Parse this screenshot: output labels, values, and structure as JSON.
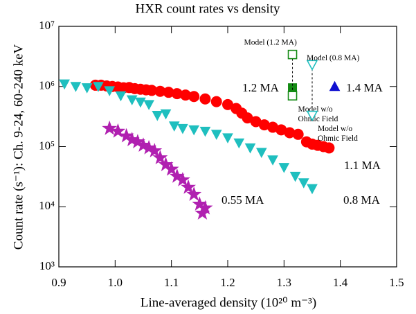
{
  "chart_data": {
    "type": "scatter",
    "title": "HXR count rates vs density",
    "xlabel": "Line-averaged density (10²⁰ m⁻³)",
    "ylabel": "Count rate (s⁻¹): Ch. 9-24, 60-240 keV",
    "xlim": [
      0.9,
      1.5
    ],
    "ylim": [
      1000,
      10000000
    ],
    "log_y": true,
    "xticks": [
      0.9,
      {
        "value": 1,
        "label": "1.0"
      },
      1.1,
      1.2,
      1.3,
      1.4,
      1.5
    ],
    "yticks": [
      {
        "value": 1000,
        "label": "10³"
      },
      {
        "value": 10000,
        "label": "10⁴"
      },
      {
        "value": 100000,
        "label": "10⁵"
      },
      {
        "value": 1000000,
        "label": "10⁶"
      },
      {
        "value": 10000000,
        "label": "10⁷"
      }
    ],
    "series": [
      {
        "name": "1.1 MA",
        "color": "#ff0000",
        "marker": "circle",
        "filled": true,
        "x": [
          0.965,
          0.975,
          0.985,
          0.995,
          1.005,
          1.015,
          1.025,
          1.035,
          1.045,
          1.055,
          1.065,
          1.08,
          1.095,
          1.11,
          1.125,
          1.14,
          1.16,
          1.18,
          1.2,
          1.215,
          1.225,
          1.235,
          1.25,
          1.265,
          1.28,
          1.295,
          1.31,
          1.325,
          1.34,
          1.35,
          1.36,
          1.37,
          1.38
        ],
        "values": [
          1050000,
          1050000,
          1020000,
          1000000,
          980000,
          950000,
          960000,
          920000,
          900000,
          880000,
          860000,
          830000,
          800000,
          760000,
          720000,
          680000,
          620000,
          560000,
          500000,
          430000,
          360000,
          300000,
          260000,
          230000,
          210000,
          190000,
          170000,
          160000,
          120000,
          110000,
          105000,
          100000,
          95000
        ]
      },
      {
        "name": "0.8 MA",
        "color": "#1fbfbf",
        "marker": "triangle-down",
        "filled": true,
        "x": [
          0.91,
          0.93,
          0.95,
          0.97,
          0.99,
          1.01,
          1.03,
          1.045,
          1.06,
          1.075,
          1.09,
          1.105,
          1.12,
          1.14,
          1.16,
          1.18,
          1.2,
          1.22,
          1.24,
          1.26,
          1.28,
          1.3,
          1.32,
          1.335,
          1.35
        ],
        "values": [
          1100000,
          1000000,
          950000,
          1000000,
          850000,
          700000,
          600000,
          550000,
          500000,
          330000,
          350000,
          220000,
          200000,
          190000,
          180000,
          160000,
          140000,
          115000,
          95000,
          80000,
          60000,
          45000,
          32000,
          25000,
          20000
        ]
      },
      {
        "name": "0.55 MA",
        "color": "#b020b0",
        "marker": "star",
        "filled": true,
        "x": [
          0.99,
          1.005,
          1.02,
          1.03,
          1.04,
          1.05,
          1.06,
          1.07,
          1.08,
          1.09,
          1.1,
          1.11,
          1.12,
          1.13,
          1.14,
          1.15,
          1.16,
          1.155
        ],
        "values": [
          200000,
          180000,
          150000,
          130000,
          120000,
          105000,
          95000,
          85000,
          65000,
          50000,
          42000,
          32000,
          28000,
          21000,
          16000,
          11000,
          9500,
          7800
        ]
      },
      {
        "name": "1.2 MA",
        "color": "#138a13",
        "marker": "square",
        "filled": true,
        "x": [
          1.315
        ],
        "values": [
          950000
        ]
      },
      {
        "name": "1.4 MA",
        "color": "#1010d0",
        "marker": "triangle-up",
        "filled": true,
        "x": [
          1.39
        ],
        "values": [
          1000000
        ]
      },
      {
        "name": "Model (1.2 MA)",
        "color": "#138a13",
        "marker": "square",
        "filled": false,
        "line": "dashed",
        "x": [
          1.315,
          1.315
        ],
        "values": [
          3400000,
          700000
        ],
        "point_labels": [
          "Model (1.2 MA)",
          [
            "Model w/o",
            "Ohmic Field"
          ]
        ]
      },
      {
        "name": "Model (0.8 MA)",
        "color": "#1fbfbf",
        "marker": "triangle-down",
        "filled": false,
        "line": "dashed",
        "x": [
          1.35,
          1.35
        ],
        "values": [
          2300000,
          330000
        ],
        "point_labels": [
          "Model (0.8 MA)",
          [
            "Model w/o",
            "Ohmic Field"
          ]
        ]
      }
    ]
  }
}
